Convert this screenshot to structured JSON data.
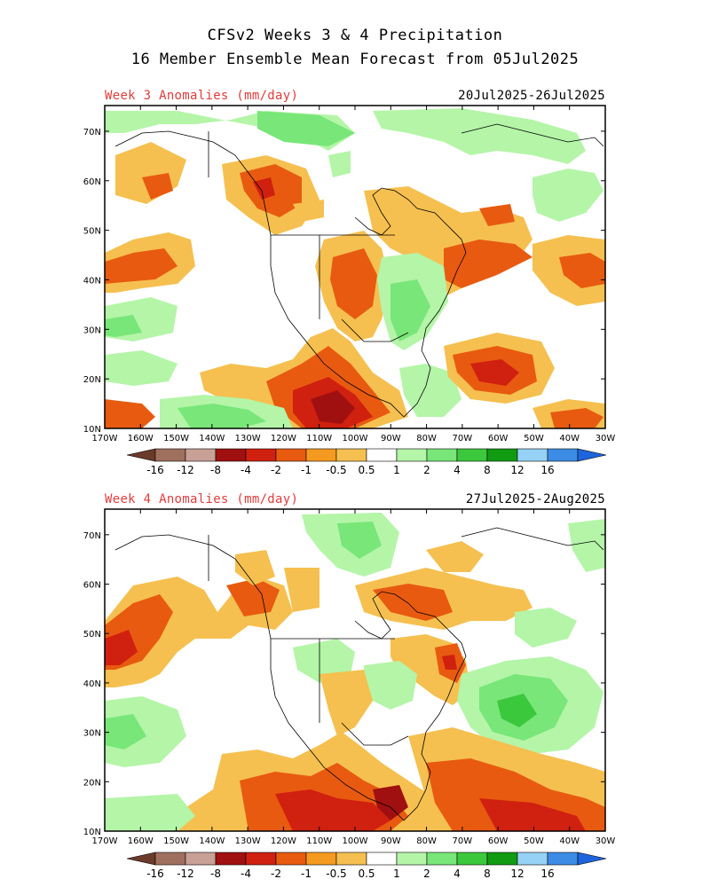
{
  "header": {
    "title_line1": "CFSv2 Weeks 3 & 4 Precipitation",
    "title_line2": "16 Member Ensemble Mean Forecast from 05Jul2025"
  },
  "panels": [
    {
      "label": "Week 3 Anomalies (mm/day)",
      "dates": "20Jul2025-26Jul2025"
    },
    {
      "label": "Week 4 Anomalies (mm/day)",
      "dates": "27Jul2025-2Aug2025"
    }
  ],
  "axes": {
    "lon_labels": [
      "170W",
      "160W",
      "150W",
      "140W",
      "130W",
      "120W",
      "110W",
      "100W",
      "90W",
      "80W",
      "70W",
      "60W",
      "50W",
      "40W",
      "30W"
    ],
    "lat_labels": [
      "70N",
      "60N",
      "50N",
      "40N",
      "30N",
      "20N",
      "10N"
    ]
  },
  "colorbar": {
    "labels": [
      "-16",
      "-12",
      "-8",
      "-4",
      "-2",
      "-1",
      "-0.5",
      "0.5",
      "1",
      "2",
      "4",
      "8",
      "12",
      "16"
    ],
    "colors": [
      "#6b3a2a",
      "#a0705e",
      "#c8a096",
      "#a01010",
      "#d02010",
      "#e85a10",
      "#f59a20",
      "#f5c050",
      "#ffffff",
      "#b4f5a8",
      "#78e678",
      "#3cc83c",
      "#119b11",
      "#96d2f5",
      "#3c8ce6",
      "#1e64dc"
    ]
  }
}
